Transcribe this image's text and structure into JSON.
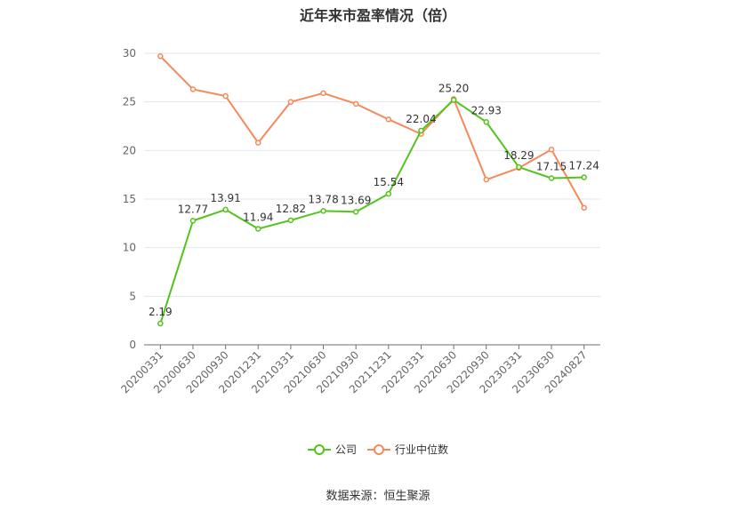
{
  "chart_data": {
    "type": "line",
    "title": "近年来市盈率情况（倍）",
    "categories": [
      "20200331",
      "20200630",
      "20200930",
      "20201231",
      "20210331",
      "20210630",
      "20210930",
      "20211231",
      "20220331",
      "20220630",
      "20220930",
      "20230331",
      "20230630",
      "20240827"
    ],
    "series": [
      {
        "name": "公司",
        "color": "#52c41a",
        "values": [
          2.19,
          12.77,
          13.91,
          11.94,
          12.82,
          13.78,
          13.69,
          15.54,
          22.04,
          25.2,
          22.93,
          18.29,
          17.15,
          17.24
        ],
        "labels": [
          "2.19",
          "12.77",
          "13.91",
          "11.94",
          "12.82",
          "13.78",
          "13.69",
          "15.54",
          "22.04",
          "25.20",
          "22.93",
          "18.29",
          "17.15",
          "17.24"
        ]
      },
      {
        "name": "行业中位数",
        "color": "#f5895a",
        "values": [
          29.7,
          26.3,
          25.6,
          20.8,
          25.0,
          25.9,
          24.8,
          23.2,
          21.7,
          25.3,
          17.0,
          18.2,
          20.1,
          14.1
        ]
      }
    ],
    "ylim": [
      0,
      30
    ],
    "yticks": [
      0,
      5,
      10,
      15,
      20,
      25,
      30
    ],
    "grid": true,
    "legend_position": "bottom"
  },
  "footer": {
    "source": "数据来源：恒生聚源"
  }
}
